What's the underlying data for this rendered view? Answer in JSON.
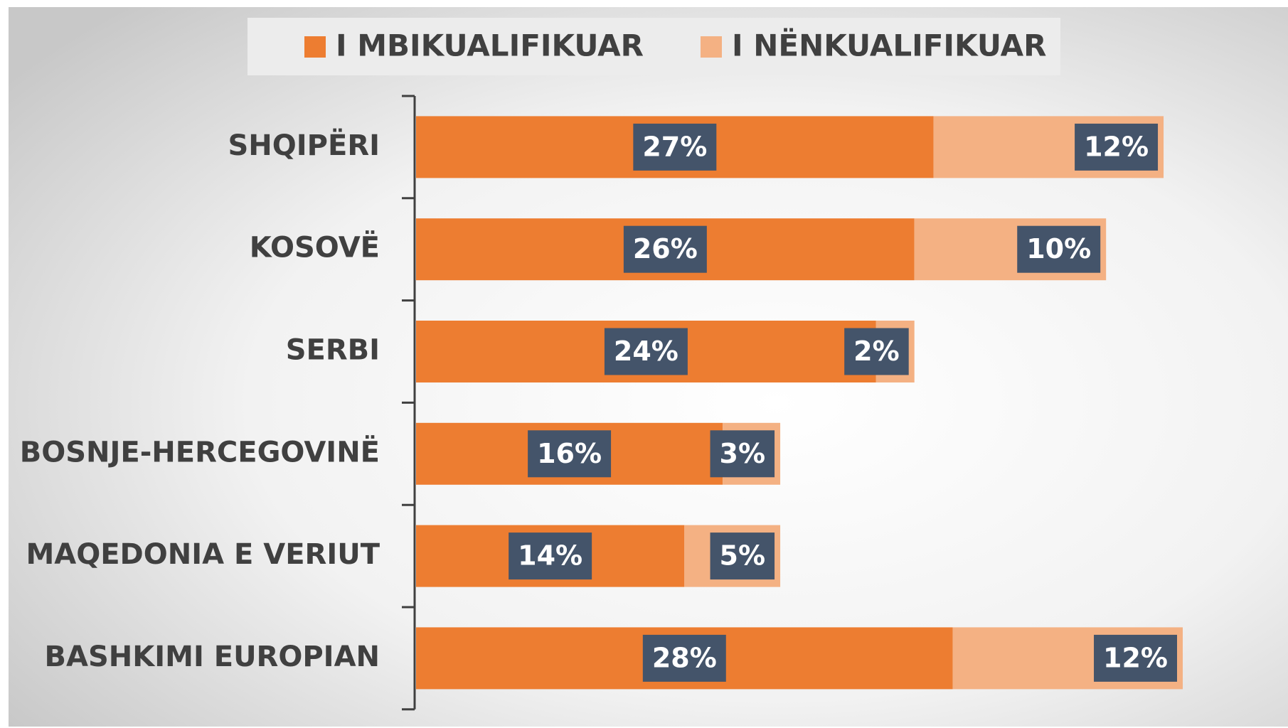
{
  "chart_data": {
    "type": "stacked-barh",
    "categories": [
      "SHQIPËRI",
      "KOSOVË",
      "SERBI",
      "BOSNJE-HERCEGOVINË",
      "MAQEDONIA E VERIUT",
      "BASHKIMI EUROPIAN"
    ],
    "series": [
      {
        "name": "I MBIKUALIFIKUAR",
        "color": "#ed7d31",
        "values": [
          27,
          26,
          24,
          16,
          14,
          28
        ],
        "value_labels": [
          "27%",
          "26%",
          "24%",
          "16%",
          "14%",
          "28%"
        ]
      },
      {
        "name": "I NËNKUALIFIKUAR",
        "color": "#f4b183",
        "values": [
          12,
          10,
          2,
          3,
          5,
          12
        ],
        "value_labels": [
          "12%",
          "10%",
          "2%",
          "3%",
          "5%",
          "12%"
        ]
      }
    ],
    "legend": "top"
  }
}
